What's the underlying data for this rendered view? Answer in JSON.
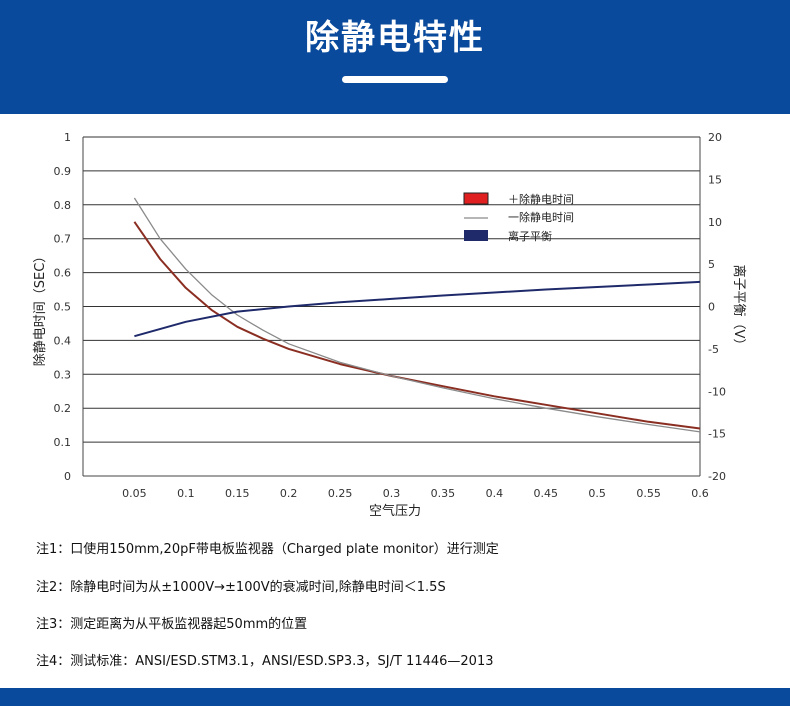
{
  "header": {
    "title": "除静电特性"
  },
  "chart_data": {
    "type": "line",
    "x": [
      0.05,
      0.1,
      0.15,
      0.2,
      0.25,
      0.3,
      0.35,
      0.4,
      0.45,
      0.5,
      0.55,
      0.6
    ],
    "xticks": [
      "0.05",
      "0.1",
      "0.15",
      "0.2",
      "0.25",
      "0.3",
      "0.35",
      "0.4",
      "0.45",
      "0.5",
      "0.55",
      "0.6"
    ],
    "xlim": [
      0.0,
      0.6
    ],
    "ylim": [
      0,
      1
    ],
    "y2lim": [
      -20,
      20
    ],
    "yticks": [
      "0",
      "0.1",
      "0.2",
      "0.3",
      "0.4",
      "0.5",
      "0.6",
      "0.7",
      "0.8",
      "0.9",
      "1"
    ],
    "y2ticks": [
      "-20",
      "-15",
      "-10",
      "-5",
      "0",
      "5",
      "10",
      "15",
      "20"
    ],
    "xlabel": "空气压力",
    "ylabel": "除静电时间（SEC）",
    "y2label": "离子平衡（V）",
    "legend_position": "top-right",
    "series": [
      {
        "name": "＋除静电时间",
        "axis": "left",
        "color": "#8b2e22",
        "x": [
          0.05,
          0.075,
          0.1,
          0.125,
          0.15,
          0.175,
          0.2,
          0.25,
          0.3,
          0.35,
          0.4,
          0.45,
          0.5,
          0.55,
          0.6
        ],
        "values": [
          0.75,
          0.64,
          0.555,
          0.49,
          0.44,
          0.405,
          0.375,
          0.33,
          0.295,
          0.265,
          0.235,
          0.21,
          0.185,
          0.16,
          0.14
        ]
      },
      {
        "name": "一除静电时间",
        "axis": "left",
        "color": "#8a8a8a",
        "x": [
          0.05,
          0.075,
          0.1,
          0.125,
          0.15,
          0.175,
          0.2,
          0.25,
          0.3,
          0.35,
          0.4,
          0.45,
          0.5,
          0.55,
          0.6
        ],
        "values": [
          0.82,
          0.7,
          0.61,
          0.535,
          0.475,
          0.43,
          0.39,
          0.335,
          0.295,
          0.26,
          0.228,
          0.2,
          0.175,
          0.152,
          0.13
        ]
      },
      {
        "name": "离子平衡",
        "axis": "right",
        "color": "#1f2a6b",
        "x": [
          0.05,
          0.1,
          0.15,
          0.2,
          0.25,
          0.3,
          0.35,
          0.4,
          0.45,
          0.5,
          0.55,
          0.6
        ],
        "values": [
          -3.5,
          -1.8,
          -0.6,
          0.0,
          0.5,
          0.9,
          1.3,
          1.65,
          2.0,
          2.3,
          2.6,
          2.9
        ]
      }
    ]
  },
  "notes": [
    "注1：口使用150mm,20pF带电板监视器（Charged plate  monitor）进行测定",
    "注2：除静电时间为从±1000V→±100V的衰减时间,除静电时间＜1.5S",
    "注3：测定距离为从平板监视器起50mm的位置",
    "注4：测试标准：ANSI/ESD.STM3.1，ANSI/ESD.SP3.3，SJ/T 11446—2013"
  ],
  "colors": {
    "brand": "#0a4a9c",
    "grid": "#333333"
  }
}
